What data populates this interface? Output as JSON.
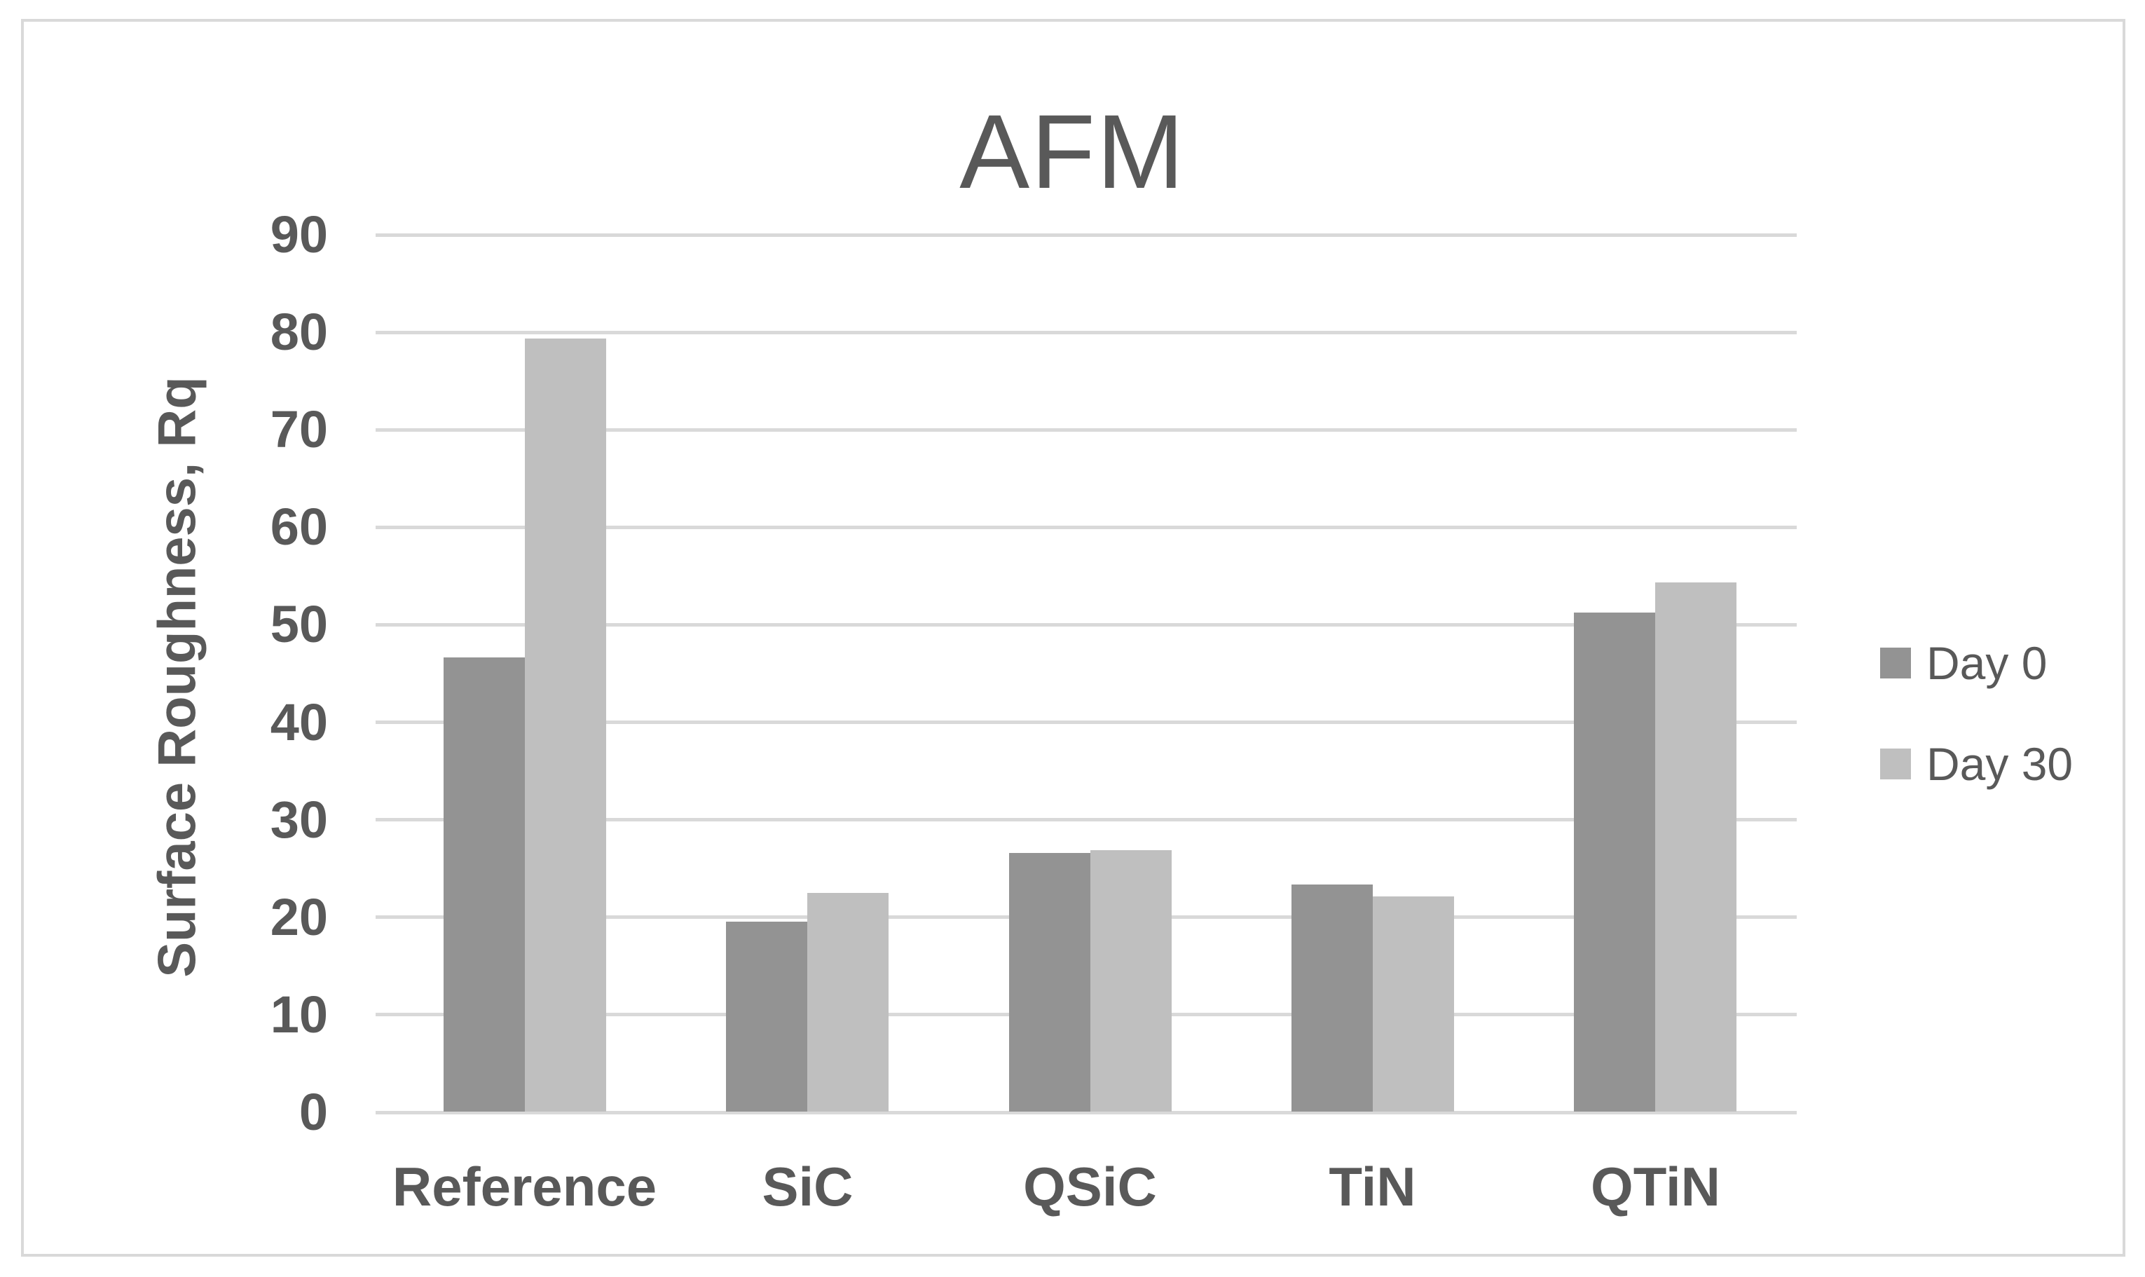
{
  "chart_data": {
    "type": "bar",
    "title": "AFM",
    "xlabel": "",
    "ylabel": "Surface Roughness, Rq",
    "categories": [
      "Reference",
      "SiC",
      "QSiC",
      "TiN",
      "QTiN"
    ],
    "series": [
      {
        "name": "Day 0",
        "color": "#939393",
        "values": [
          46.6,
          19.5,
          26.5,
          23.3,
          51.2
        ]
      },
      {
        "name": "Day 30",
        "color": "#bfbfbf",
        "values": [
          79.3,
          22.4,
          26.8,
          22.1,
          54.3
        ]
      }
    ],
    "ylim": [
      0,
      90
    ],
    "ytick_step": 10,
    "yticks": [
      0,
      10,
      20,
      30,
      40,
      50,
      60,
      70,
      80,
      90
    ],
    "grid": true,
    "legend_position": "right",
    "colors": {
      "text": "#595959",
      "gridline": "#d9d9d9",
      "frame_border": "#d9d9d9",
      "background": "#ffffff"
    }
  }
}
